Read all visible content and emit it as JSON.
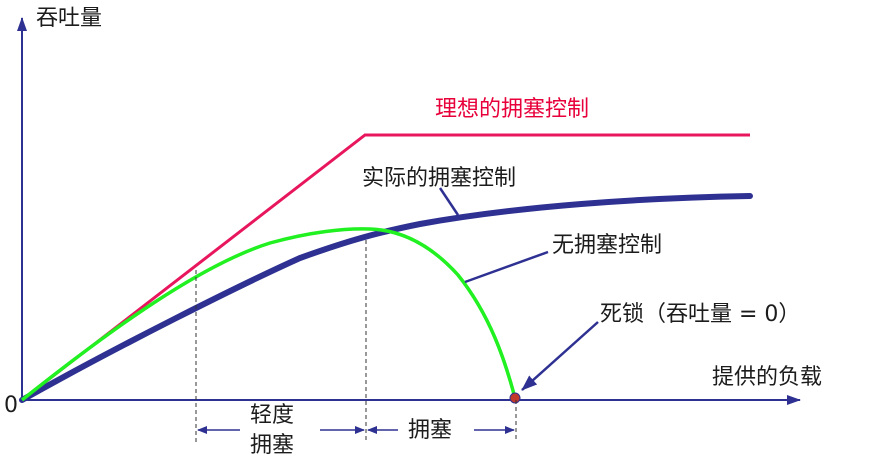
{
  "chart_data": {
    "type": "line",
    "title": "",
    "ylabel": "吞吐量",
    "xlabel": "提供的负载",
    "origin_label": "0",
    "series": [
      {
        "name": "理想的拥塞控制",
        "color": "#e8175d"
      },
      {
        "name": "实际的拥塞控制",
        "color": "#2e3192"
      },
      {
        "name": "无拥塞控制",
        "color": "#21f021"
      }
    ],
    "annotations": {
      "deadlock": "死锁（吞吐量 = 0）"
    },
    "regions": [
      {
        "label_line1": "轻度",
        "label_line2": "拥塞"
      },
      {
        "label_line1": "拥塞"
      }
    ]
  },
  "colors": {
    "axis": "#2e3192",
    "ideal": "#e8175d",
    "actual": "#2e3192",
    "none": "#21f021",
    "deadlock_point": "#c0392b",
    "text_red": "#e8003a"
  }
}
